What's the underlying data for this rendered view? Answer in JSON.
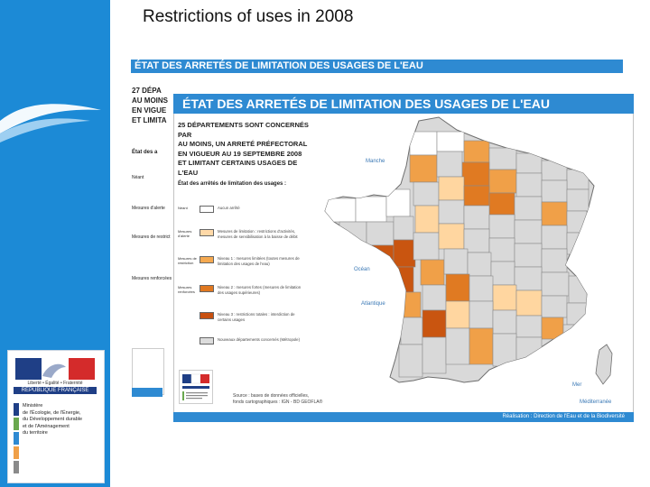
{
  "slide": {
    "title": "Restrictions of uses in 2008"
  },
  "logos": {
    "republique_motto": "Liberté • Égalité • Fraternité",
    "republique_name": "RÉPUBLIQUE FRANÇAISE",
    "ministry_lines": [
      "Ministère",
      "de l'Écologie, de l'Énergie,",
      "du Développement durable",
      "et de l'Aménagement",
      "du territoire"
    ]
  },
  "back_map": {
    "header": "ÉTAT DES ARRETÉS DE LIMITATION DES USAGES DE L'EAU",
    "intro_lines": [
      "27 DÉPA",
      "AU MOINS",
      "EN VIGUE",
      "ET LIMITA"
    ],
    "legend_title": "État des a",
    "legend_labels": [
      "Néant",
      "Mesures d'alerte",
      "Mesures de restrict",
      "Mesures renforcées"
    ]
  },
  "front_map": {
    "header": "ÉTAT DES ARRETÉS DE LIMITATION DES USAGES DE L'EAU",
    "intro_lines": [
      "25 DÉPARTEMENTS SONT CONCERNÉS PAR",
      "AU MOINS, UN ARRETÉ PRÉFECTORAL",
      "EN VIGUEUR AU 19 SEPTEMBRE 2008",
      "ET LIMITANT CERTAINS USAGES DE L'EAU"
    ],
    "legend_title": "État des arrêtés de limitation des usages :",
    "legend": [
      {
        "label": "Néant",
        "color": "#ffffff",
        "desc": "Aucun arrêté"
      },
      {
        "label": "Mesures d'alerte",
        "color": "#ffd9a8",
        "desc": "Mesures de limitation : restrictions d'activités, mesures de sensibilisation à la baisse de débit"
      },
      {
        "label": "Mesures de restriction",
        "color": "#f5a950",
        "desc": "Niveau 1 : mesures limitées (toutes mesures de limitation des usages de l'eau)"
      },
      {
        "label": "Mesures renforcées",
        "color": "#e07820",
        "desc": "Niveau 2 : mesures fortes (mesures de limitation des usages supérieures)"
      },
      {
        "label": "",
        "color": "#c85010",
        "desc": "Niveau 3 : restrictions totales : interdiction de certains usages"
      },
      {
        "label": "",
        "color": "#dcdcdc",
        "desc": "Nouveaux départements concernés (Métropole)"
      }
    ],
    "source_lines": [
      "Source : bases de données officielles,",
      "fonds cartographiques : IGN - BD GEOFLA®"
    ],
    "footer": "Réalisation : Direction de l'Eau et de la Biodiversité",
    "sea_labels": {
      "manche": "Manche",
      "ocean": "Océan",
      "atlantique": "Atlantique",
      "mer": "Mer",
      "mediterranee": "Méditerranée"
    }
  },
  "map_colors": {
    "none": "#d9d9d9",
    "white": "#ffffff",
    "alert": "#ffd6a0",
    "restriction": "#f0a048",
    "reinforced": "#e07a22",
    "crisis": "#c95510",
    "sidebar": "#1c8ad6",
    "header": "#2e8ad2"
  }
}
